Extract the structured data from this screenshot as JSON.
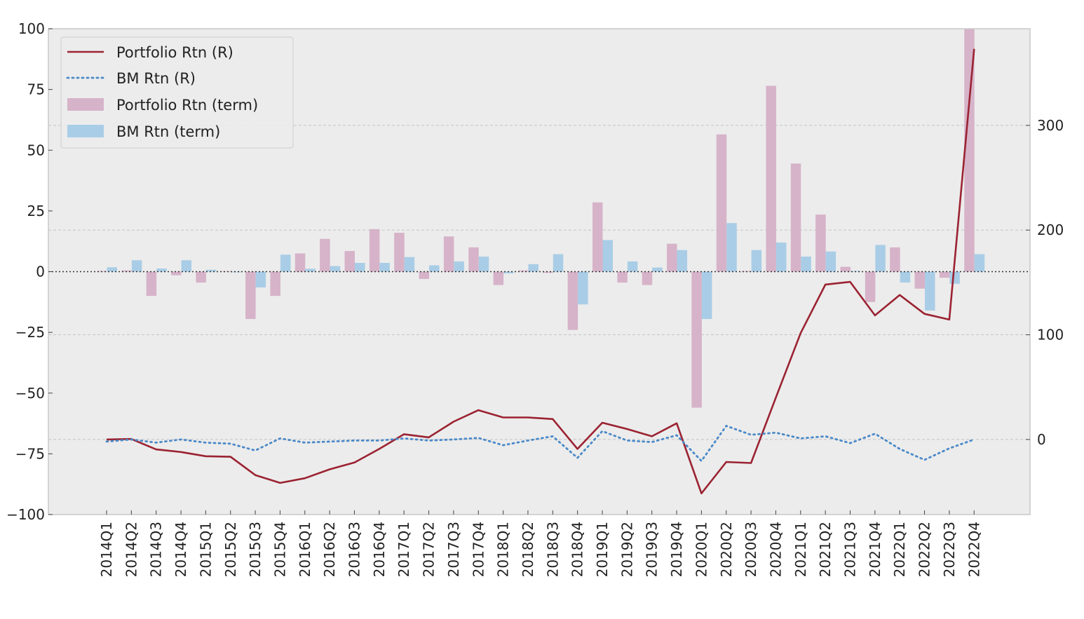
{
  "chart_data": {
    "type": "bar+line",
    "title": "",
    "xlabel": "",
    "ylabel_left": "",
    "ylabel_right": "",
    "categories": [
      "2014Q1",
      "2014Q2",
      "2014Q3",
      "2014Q4",
      "2015Q1",
      "2015Q2",
      "2015Q3",
      "2015Q4",
      "2016Q1",
      "2016Q2",
      "2016Q3",
      "2016Q4",
      "2017Q1",
      "2017Q2",
      "2017Q3",
      "2017Q4",
      "2018Q1",
      "2018Q2",
      "2018Q3",
      "2018Q4",
      "2019Q1",
      "2019Q2",
      "2019Q3",
      "2019Q4",
      "2020Q1",
      "2020Q2",
      "2020Q3",
      "2020Q4",
      "2021Q1",
      "2021Q2",
      "2021Q3",
      "2021Q4",
      "2022Q1",
      "2022Q2",
      "2022Q3",
      "2022Q4"
    ],
    "ylim_left": [
      -100,
      100
    ],
    "yticks_left": [
      100,
      75,
      50,
      25,
      0,
      -25,
      -50,
      -75,
      -100
    ],
    "ylim_right": [
      -71.7,
      392.3
    ],
    "yticks_right": [
      300,
      200,
      100,
      0
    ],
    "grid": true,
    "zero_line": "dotted",
    "legend": {
      "position": "top-left",
      "entries": [
        "Portfolio Rtn (R)",
        "BM Rtn (R)",
        "Portfolio Rtn (term)",
        "BM Rtn (term)"
      ]
    },
    "colors": {
      "portfolio_line": "#9b2332",
      "bm_line": "#4a89c8",
      "portfolio_bar": "#d6b3c9",
      "bm_bar": "#a9cde6",
      "background": "#ececec",
      "frame": "#c8c8c8",
      "grid": "#c4c4c4"
    },
    "bar_series": [
      {
        "name": "Portfolio Rtn (term)",
        "axis": "left",
        "values": [
          0.3,
          0.5,
          -10,
          -1.5,
          -4.5,
          0.2,
          -19.5,
          -10,
          7.5,
          13.5,
          8.5,
          17.5,
          16,
          -3,
          14.5,
          10,
          -5.5,
          0.5,
          -0.5,
          -24,
          28.5,
          -4.5,
          -5.5,
          11.5,
          -56,
          56.5,
          0.3,
          76.5,
          44.5,
          23.5,
          2,
          -12.5,
          10,
          -7,
          -2.5,
          100
        ]
      },
      {
        "name": "BM Rtn (term)",
        "axis": "left",
        "values": [
          1.8,
          4.7,
          1.3,
          4.7,
          0.8,
          -0.3,
          -6.5,
          7,
          1.2,
          2.3,
          3.6,
          3.6,
          6,
          2.6,
          4.2,
          6.2,
          -0.7,
          3.1,
          7.2,
          -13.5,
          13,
          4.2,
          1.7,
          8.9,
          -19.5,
          20,
          8.9,
          12,
          6.2,
          8.3,
          0.3,
          11,
          -4.5,
          -16,
          -5,
          7.2
        ]
      }
    ],
    "line_series": [
      {
        "name": "Portfolio Rtn (R)",
        "axis": "right",
        "style": "solid",
        "values": [
          0,
          0.5,
          -9.5,
          -12,
          -16,
          -16.5,
          -34,
          -41.5,
          -37,
          -28.5,
          -22,
          -9,
          5,
          2,
          17,
          28,
          21,
          21,
          19.5,
          -9,
          16,
          10,
          3,
          15.5,
          -51.5,
          -21.5,
          -22.5,
          40,
          101.5,
          148,
          150.5,
          118.5,
          138,
          120,
          114.5,
          373
        ]
      },
      {
        "name": "BM Rtn (R)",
        "axis": "right",
        "style": "dotted",
        "values": [
          -2,
          0,
          -3,
          0,
          -3,
          -4,
          -10.5,
          1,
          -3,
          -2,
          -1,
          -1,
          1,
          -1,
          0,
          1.5,
          -5.5,
          -1,
          3,
          -17.5,
          8,
          -1,
          -2.5,
          4,
          -20.5,
          13,
          4.5,
          6.5,
          1,
          3,
          -3.5,
          5.5,
          -9,
          -19.5,
          -8.5,
          0
        ]
      }
    ]
  }
}
